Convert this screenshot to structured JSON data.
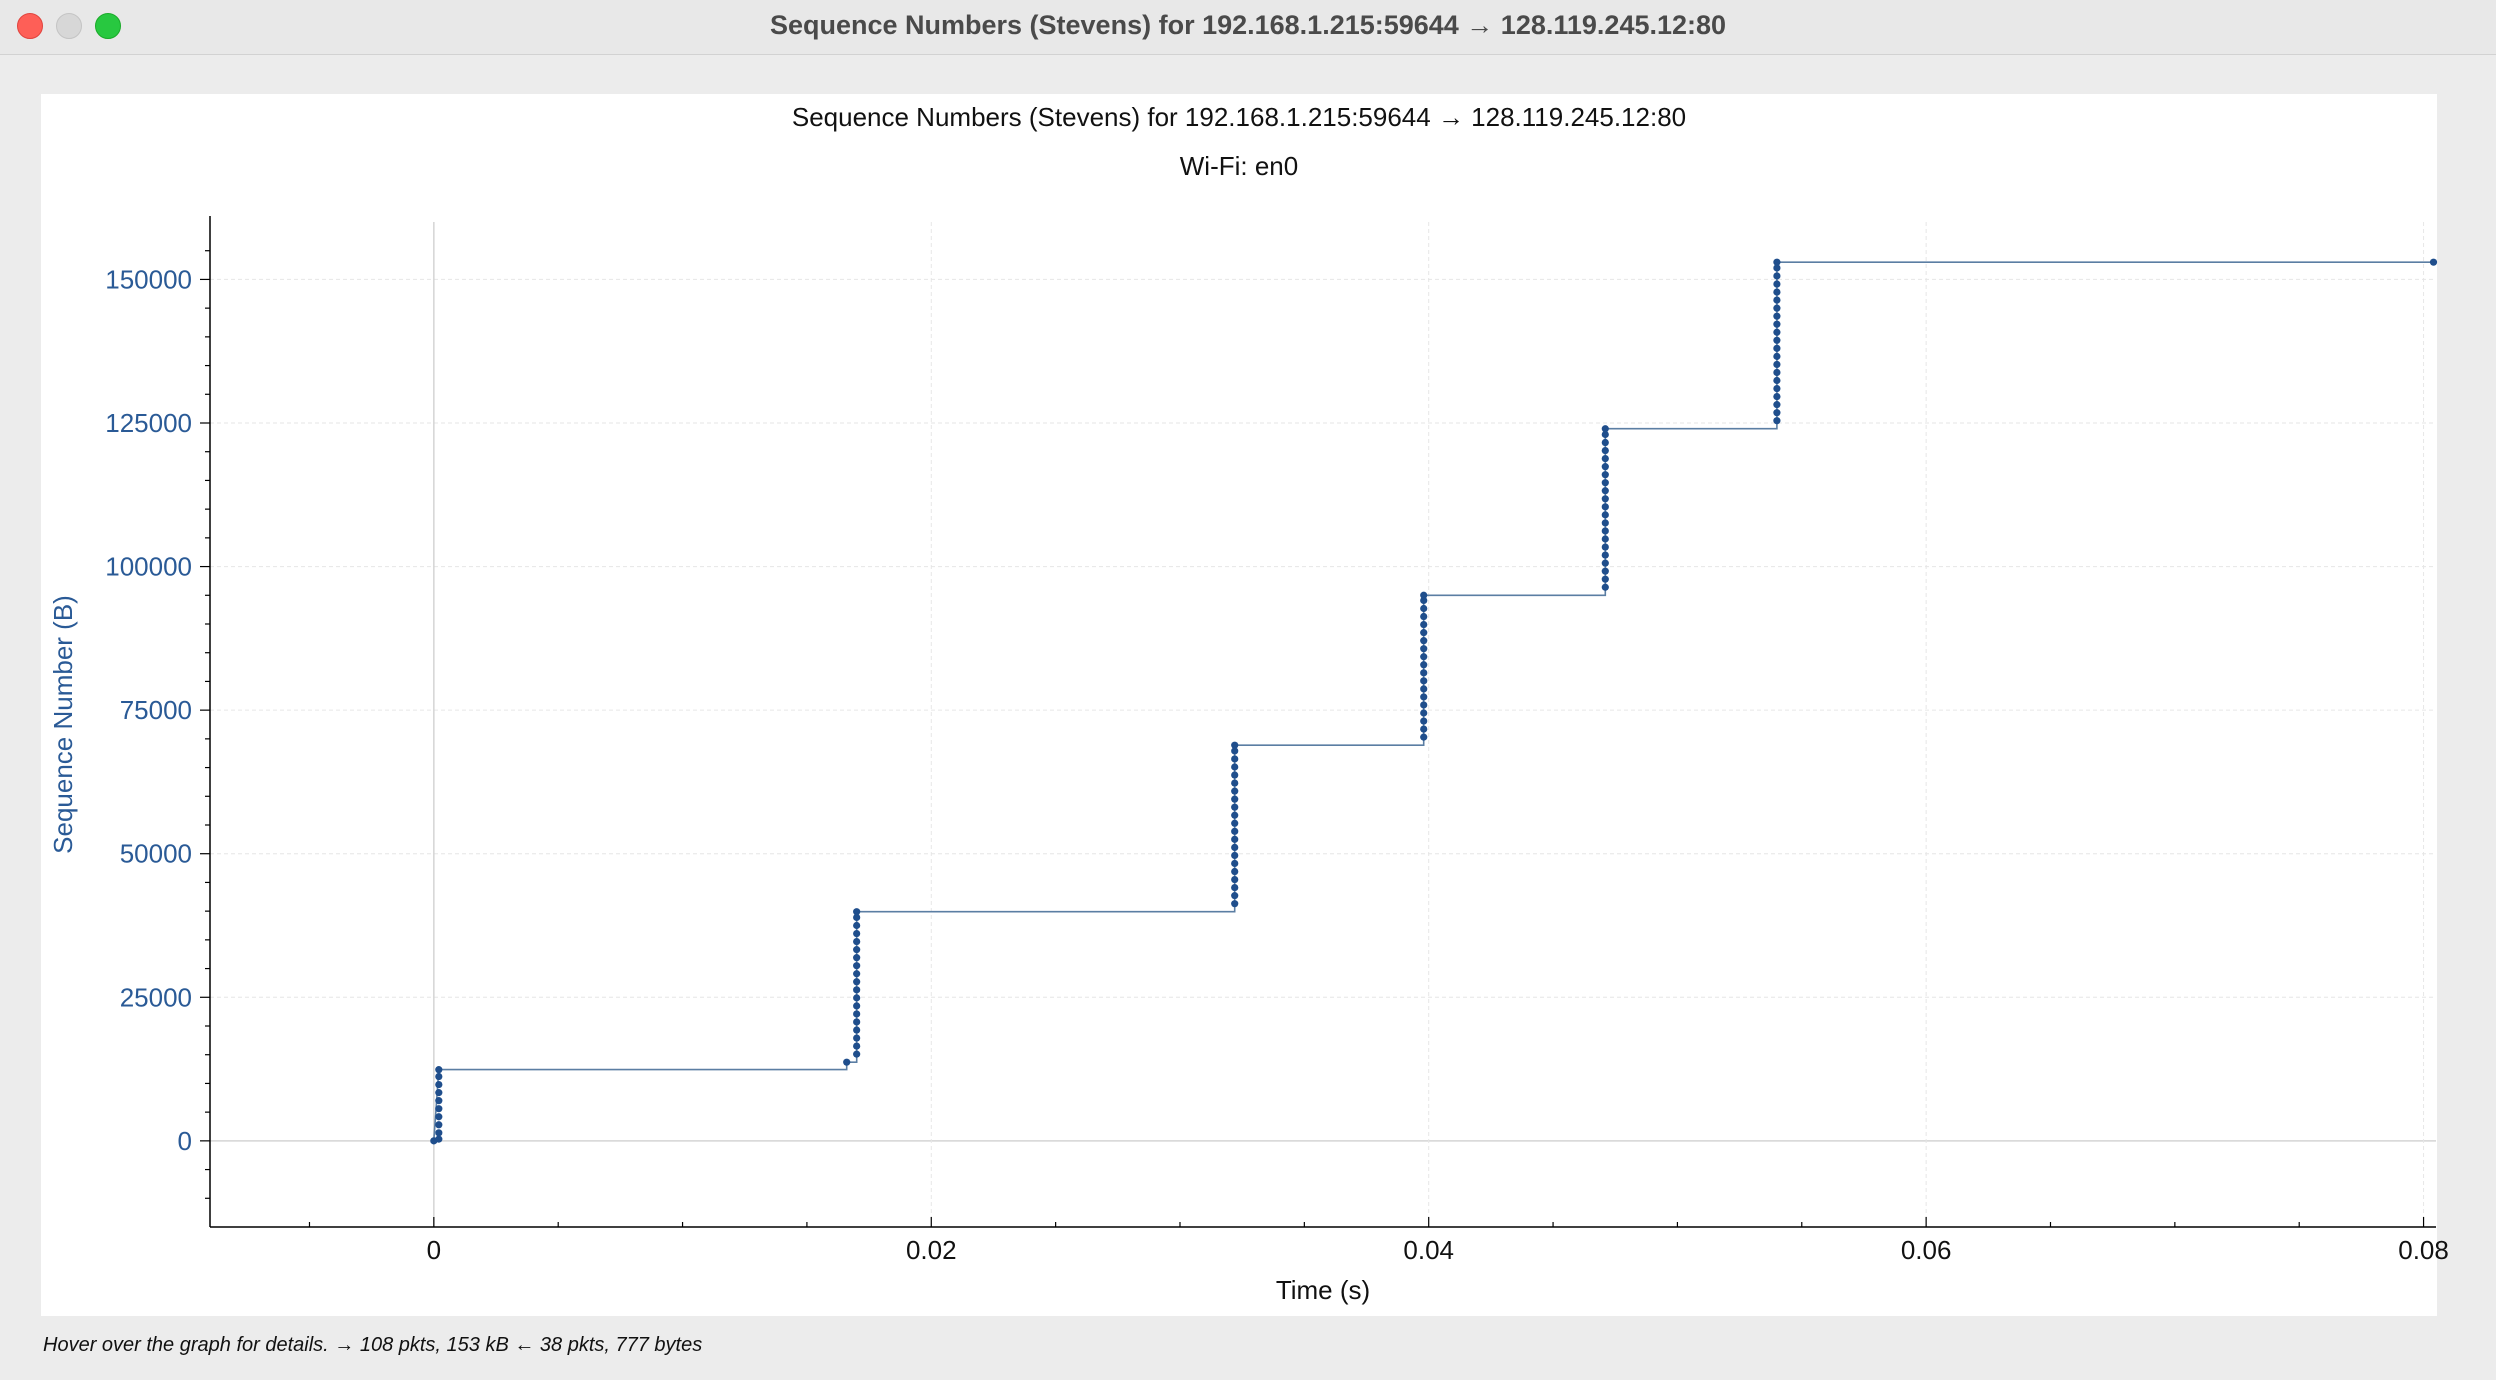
{
  "window": {
    "title": "Sequence Numbers (Stevens) for 192.168.1.215:59644 → 128.119.245.12:80",
    "controls": [
      "close",
      "minimize",
      "zoom"
    ]
  },
  "status": {
    "text": "Hover over the graph for details. → 108 pkts, 153 kB ← 38 pkts, 777 bytes"
  },
  "chart_data": {
    "type": "scatter",
    "title": "Sequence Numbers (Stevens) for 192.168.1.215:59644 → 128.119.245.12:80",
    "subtitle": "Wi-Fi: en0",
    "xlabel": "Time (s)",
    "ylabel": "Sequence Number (B)",
    "xlim": [
      -0.009,
      0.0805
    ],
    "ylim": [
      -15000,
      160000
    ],
    "xticks": [
      0,
      0.02,
      0.04,
      0.06,
      0.08
    ],
    "xtick_labels": [
      "0",
      "0.02",
      "0.04",
      "0.06",
      "0.08"
    ],
    "yticks": [
      0,
      25000,
      50000,
      75000,
      100000,
      125000,
      150000
    ],
    "ytick_labels": [
      "0",
      "25000",
      "50000",
      "75000",
      "100000",
      "125000",
      "150000"
    ],
    "grid": true,
    "colors": {
      "points": "#1f4e8c",
      "step_line": "#5b7ea3",
      "axis_label": "#2a5a96",
      "grid": "#e6e6e6"
    },
    "series": [
      {
        "points": [
          {
            "x": 0.0,
            "y": 0
          },
          {
            "x": 0.0002,
            "y": 300
          },
          {
            "x": 0.0002,
            "y": 1400
          },
          {
            "x": 0.0002,
            "y": 2800
          },
          {
            "x": 0.0002,
            "y": 4200
          },
          {
            "x": 0.0002,
            "y": 5600
          },
          {
            "x": 0.0002,
            "y": 7000
          },
          {
            "x": 0.0002,
            "y": 8400
          },
          {
            "x": 0.0002,
            "y": 9800
          },
          {
            "x": 0.0002,
            "y": 11200
          },
          {
            "x": 0.0002,
            "y": 12400
          },
          {
            "x": 0.0166,
            "y": 13700
          },
          {
            "x": 0.017,
            "y": 15100
          },
          {
            "x": 0.017,
            "y": 16500
          },
          {
            "x": 0.017,
            "y": 17900
          },
          {
            "x": 0.017,
            "y": 19300
          },
          {
            "x": 0.017,
            "y": 20700
          },
          {
            "x": 0.017,
            "y": 22100
          },
          {
            "x": 0.017,
            "y": 23500
          },
          {
            "x": 0.017,
            "y": 24900
          },
          {
            "x": 0.017,
            "y": 26300
          },
          {
            "x": 0.017,
            "y": 27700
          },
          {
            "x": 0.017,
            "y": 29100
          },
          {
            "x": 0.017,
            "y": 30500
          },
          {
            "x": 0.017,
            "y": 31900
          },
          {
            "x": 0.017,
            "y": 33300
          },
          {
            "x": 0.017,
            "y": 34700
          },
          {
            "x": 0.017,
            "y": 36100
          },
          {
            "x": 0.017,
            "y": 37500
          },
          {
            "x": 0.017,
            "y": 38900
          },
          {
            "x": 0.017,
            "y": 39900
          },
          {
            "x": 0.0322,
            "y": 41300
          },
          {
            "x": 0.0322,
            "y": 42700
          },
          {
            "x": 0.0322,
            "y": 44100
          },
          {
            "x": 0.0322,
            "y": 45500
          },
          {
            "x": 0.0322,
            "y": 46900
          },
          {
            "x": 0.0322,
            "y": 48300
          },
          {
            "x": 0.0322,
            "y": 49700
          },
          {
            "x": 0.0322,
            "y": 51100
          },
          {
            "x": 0.0322,
            "y": 52500
          },
          {
            "x": 0.0322,
            "y": 53900
          },
          {
            "x": 0.0322,
            "y": 55300
          },
          {
            "x": 0.0322,
            "y": 56700
          },
          {
            "x": 0.0322,
            "y": 58100
          },
          {
            "x": 0.0322,
            "y": 59500
          },
          {
            "x": 0.0322,
            "y": 60900
          },
          {
            "x": 0.0322,
            "y": 62300
          },
          {
            "x": 0.0322,
            "y": 63700
          },
          {
            "x": 0.0322,
            "y": 65100
          },
          {
            "x": 0.0322,
            "y": 66500
          },
          {
            "x": 0.0322,
            "y": 67900
          },
          {
            "x": 0.0322,
            "y": 68900
          },
          {
            "x": 0.0398,
            "y": 70300
          },
          {
            "x": 0.0398,
            "y": 71700
          },
          {
            "x": 0.0398,
            "y": 73100
          },
          {
            "x": 0.0398,
            "y": 74500
          },
          {
            "x": 0.0398,
            "y": 75900
          },
          {
            "x": 0.0398,
            "y": 77300
          },
          {
            "x": 0.0398,
            "y": 78700
          },
          {
            "x": 0.0398,
            "y": 80100
          },
          {
            "x": 0.0398,
            "y": 81500
          },
          {
            "x": 0.0398,
            "y": 82900
          },
          {
            "x": 0.0398,
            "y": 84300
          },
          {
            "x": 0.0398,
            "y": 85700
          },
          {
            "x": 0.0398,
            "y": 87100
          },
          {
            "x": 0.0398,
            "y": 88500
          },
          {
            "x": 0.0398,
            "y": 89900
          },
          {
            "x": 0.0398,
            "y": 91300
          },
          {
            "x": 0.0398,
            "y": 92700
          },
          {
            "x": 0.0398,
            "y": 94100
          },
          {
            "x": 0.0398,
            "y": 95000
          },
          {
            "x": 0.0471,
            "y": 96400
          },
          {
            "x": 0.0471,
            "y": 97800
          },
          {
            "x": 0.0471,
            "y": 99200
          },
          {
            "x": 0.0471,
            "y": 100600
          },
          {
            "x": 0.0471,
            "y": 102000
          },
          {
            "x": 0.0471,
            "y": 103400
          },
          {
            "x": 0.0471,
            "y": 104800
          },
          {
            "x": 0.0471,
            "y": 106200
          },
          {
            "x": 0.0471,
            "y": 107600
          },
          {
            "x": 0.0471,
            "y": 109000
          },
          {
            "x": 0.0471,
            "y": 110400
          },
          {
            "x": 0.0471,
            "y": 111800
          },
          {
            "x": 0.0471,
            "y": 113200
          },
          {
            "x": 0.0471,
            "y": 114600
          },
          {
            "x": 0.0471,
            "y": 116000
          },
          {
            "x": 0.0471,
            "y": 117400
          },
          {
            "x": 0.0471,
            "y": 118800
          },
          {
            "x": 0.0471,
            "y": 120200
          },
          {
            "x": 0.0471,
            "y": 121600
          },
          {
            "x": 0.0471,
            "y": 123000
          },
          {
            "x": 0.0471,
            "y": 124000
          },
          {
            "x": 0.054,
            "y": 125400
          },
          {
            "x": 0.054,
            "y": 126800
          },
          {
            "x": 0.054,
            "y": 128200
          },
          {
            "x": 0.054,
            "y": 129600
          },
          {
            "x": 0.054,
            "y": 131000
          },
          {
            "x": 0.054,
            "y": 132400
          },
          {
            "x": 0.054,
            "y": 133800
          },
          {
            "x": 0.054,
            "y": 135200
          },
          {
            "x": 0.054,
            "y": 136600
          },
          {
            "x": 0.054,
            "y": 138000
          },
          {
            "x": 0.054,
            "y": 139400
          },
          {
            "x": 0.054,
            "y": 140800
          },
          {
            "x": 0.054,
            "y": 142200
          },
          {
            "x": 0.054,
            "y": 143600
          },
          {
            "x": 0.054,
            "y": 145000
          },
          {
            "x": 0.054,
            "y": 146400
          },
          {
            "x": 0.054,
            "y": 147800
          },
          {
            "x": 0.054,
            "y": 149200
          },
          {
            "x": 0.054,
            "y": 150600
          },
          {
            "x": 0.054,
            "y": 152000
          },
          {
            "x": 0.054,
            "y": 153000
          },
          {
            "x": 0.0804,
            "y": 153000
          }
        ],
        "step_line": [
          {
            "x": 0.0,
            "y": 0
          },
          {
            "x": 0.0002,
            "y": 12400
          },
          {
            "x": 0.0166,
            "y": 12400
          },
          {
            "x": 0.0166,
            "y": 13700
          },
          {
            "x": 0.017,
            "y": 13700
          },
          {
            "x": 0.017,
            "y": 39900
          },
          {
            "x": 0.0322,
            "y": 39900
          },
          {
            "x": 0.0322,
            "y": 68900
          },
          {
            "x": 0.0398,
            "y": 68900
          },
          {
            "x": 0.0398,
            "y": 95000
          },
          {
            "x": 0.0471,
            "y": 95000
          },
          {
            "x": 0.0471,
            "y": 124000
          },
          {
            "x": 0.054,
            "y": 124000
          },
          {
            "x": 0.054,
            "y": 153000
          },
          {
            "x": 0.0804,
            "y": 153000
          }
        ]
      }
    ]
  }
}
